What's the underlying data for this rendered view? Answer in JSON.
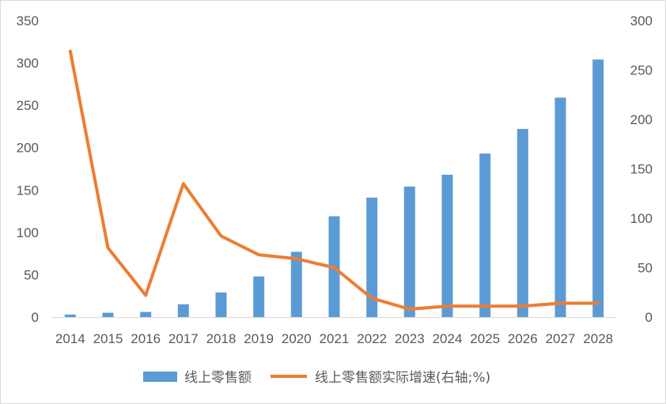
{
  "chart_data": {
    "type": "bar+line",
    "categories": [
      "2014",
      "2015",
      "2016",
      "2017",
      "2018",
      "2019",
      "2020",
      "2021",
      "2022",
      "2023",
      "2024",
      "2025",
      "2026",
      "2027",
      "2028"
    ],
    "series": [
      {
        "name": "线上零售额",
        "type": "bar",
        "axis": "left",
        "color": "#5b9bd5",
        "values": [
          3,
          5,
          6,
          15,
          29,
          48,
          77,
          119,
          141,
          154,
          168,
          193,
          222,
          259,
          304
        ]
      },
      {
        "name": "线上零售额实际增速(右轴;%)",
        "type": "line",
        "axis": "right",
        "color": "#ed7d31",
        "values": [
          269,
          70,
          22,
          135,
          82,
          63,
          59,
          50,
          19,
          8,
          11,
          11,
          11,
          14,
          14
        ]
      }
    ],
    "left_axis": {
      "min": 0,
      "max": 350,
      "ticks": [
        "0",
        "50",
        "100",
        "150",
        "200",
        "250",
        "300",
        "350"
      ]
    },
    "right_axis": {
      "min": 0,
      "max": 300,
      "ticks": [
        "0",
        "50",
        "100",
        "150",
        "200",
        "250",
        "300"
      ]
    },
    "legend": {
      "position": "bottom"
    },
    "grid": false
  }
}
